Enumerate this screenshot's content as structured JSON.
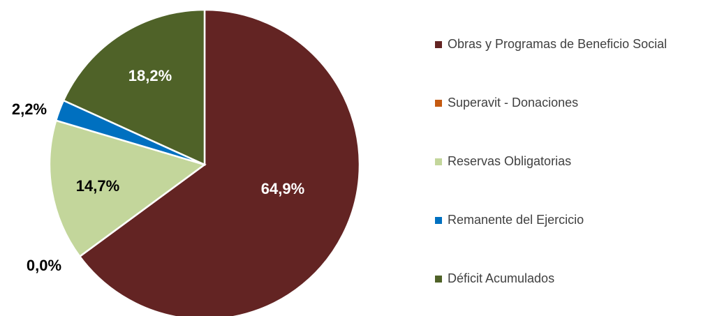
{
  "chart_data": {
    "type": "pie",
    "categories": [
      "Obras y Programas de Beneficio Social",
      "Superavit - Donaciones",
      "Reservas Obligatorias",
      "Remanente del Ejercicio",
      "Déficit Acumulados"
    ],
    "values": [
      64.9,
      0.0,
      14.7,
      2.2,
      18.2
    ],
    "value_labels": [
      "64,9%",
      "0,0%",
      "14,7%",
      "2,2%",
      "18,2%"
    ],
    "colors": [
      "#632423",
      "#C55A11",
      "#C3D69B",
      "#0070C0",
      "#4F6228"
    ],
    "legend": "right"
  }
}
